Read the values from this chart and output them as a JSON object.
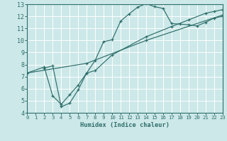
{
  "xlabel": "Humidex (Indice chaleur)",
  "bg_color": "#cce8e8",
  "grid_color": "#ffffff",
  "line_color": "#2e6e6a",
  "xlim": [
    0,
    23
  ],
  "ylim": [
    4,
    13
  ],
  "xticks": [
    0,
    1,
    2,
    3,
    4,
    5,
    6,
    7,
    8,
    9,
    10,
    11,
    12,
    13,
    14,
    15,
    16,
    17,
    18,
    19,
    20,
    21,
    22,
    23
  ],
  "yticks": [
    4,
    5,
    6,
    7,
    8,
    9,
    10,
    11,
    12,
    13
  ],
  "curve1_x": [
    2,
    3,
    4,
    5,
    6,
    7,
    8,
    9,
    10,
    11,
    12,
    13,
    14,
    15,
    16,
    17,
    18,
    19,
    20,
    21,
    22,
    23
  ],
  "curve1_y": [
    7.7,
    7.9,
    4.5,
    4.8,
    5.9,
    7.3,
    8.35,
    9.9,
    10.05,
    11.6,
    12.2,
    12.75,
    13.05,
    12.8,
    12.65,
    11.4,
    11.35,
    11.3,
    11.2,
    11.5,
    11.85,
    12.0
  ],
  "curve2_x": [
    0,
    2,
    3,
    4,
    5,
    6,
    7,
    8,
    10,
    14,
    17,
    19,
    21,
    22,
    23
  ],
  "curve2_y": [
    7.3,
    7.8,
    5.4,
    4.7,
    5.5,
    6.3,
    7.3,
    7.5,
    8.8,
    10.3,
    11.15,
    11.7,
    12.25,
    12.4,
    12.55
  ],
  "curve3_x": [
    0,
    7,
    14,
    23
  ],
  "curve3_y": [
    7.3,
    8.1,
    10.0,
    12.1
  ]
}
